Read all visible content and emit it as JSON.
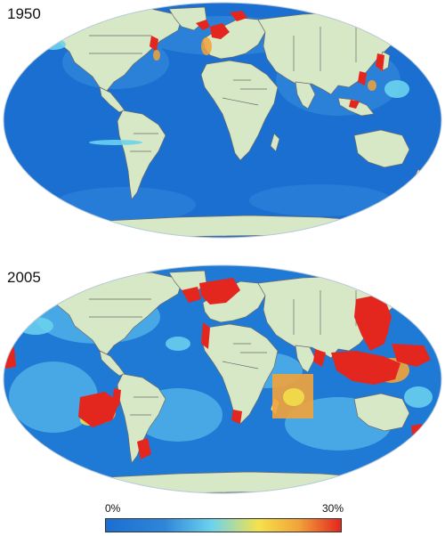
{
  "maps": [
    {
      "year": "1950",
      "hotspots": [
        "north-atlantic",
        "north-sea",
        "northwest-atlantic",
        "japan-coast",
        "east-china-sea",
        "southeast-asia",
        "north-pacific-coast"
      ]
    },
    {
      "year": "2005",
      "hotspots": [
        "north-atlantic",
        "north-sea",
        "west-africa-coast",
        "east-asia",
        "southeast-asia",
        "western-pacific",
        "indian-ocean-west",
        "south-atlantic-patagonia",
        "south-pacific-chile",
        "bay-of-bengal",
        "peru-coast",
        "south-africa"
      ]
    }
  ],
  "legend": {
    "min_label": "0%",
    "max_label": "30%",
    "scale_min": 0,
    "scale_max": 30,
    "unit": "%"
  },
  "colors": {
    "ocean_deep": "#1a6fd1",
    "ocean_mid": "#2f86d9",
    "ocean_light": "#56b8ea",
    "land": "#d7e8c6",
    "border": "#6a6a6a",
    "hot": "#e3261e",
    "warm": "#f2a33a",
    "yellow": "#f5e24a",
    "cyan": "#6cd3ee"
  }
}
